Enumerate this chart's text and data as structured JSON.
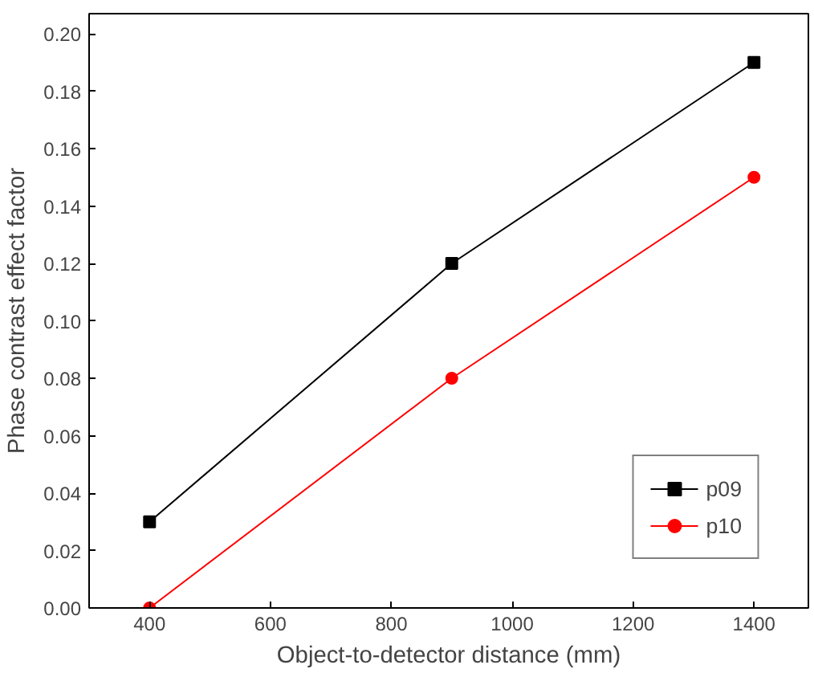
{
  "chart_data": {
    "type": "line",
    "xlabel": "Object-to-detector distance (mm)",
    "ylabel": "Phase contrast effect factor",
    "x": [
      400,
      900,
      1400
    ],
    "series": [
      {
        "name": "p09",
        "color": "#000000",
        "marker": "square",
        "values": [
          0.03,
          0.12,
          0.19
        ]
      },
      {
        "name": "p10",
        "color": "#ff0000",
        "marker": "circle",
        "values": [
          0.0,
          0.08,
          0.15
        ]
      }
    ],
    "xlim": [
      300,
      1490
    ],
    "ylim": [
      0,
      0.207
    ],
    "xticks": [
      400,
      600,
      800,
      1000,
      1200,
      1400
    ],
    "yticks": [
      {
        "value": 0,
        "label": "0.00"
      },
      {
        "value": 0.02,
        "label": "0.02"
      },
      {
        "value": 0.04,
        "label": "0.04"
      },
      {
        "value": 0.06,
        "label": "0.06"
      },
      {
        "value": 0.08,
        "label": "0.08"
      },
      {
        "value": 0.1,
        "label": "0.10"
      },
      {
        "value": 0.12,
        "label": "0.12"
      },
      {
        "value": 0.14,
        "label": "0.14"
      },
      {
        "value": 0.16,
        "label": "0.16"
      },
      {
        "value": 0.18,
        "label": "0.18"
      },
      {
        "value": 0.2,
        "label": "0.20"
      }
    ],
    "grid": false,
    "legend": "bottom right",
    "line_style": "solid"
  }
}
